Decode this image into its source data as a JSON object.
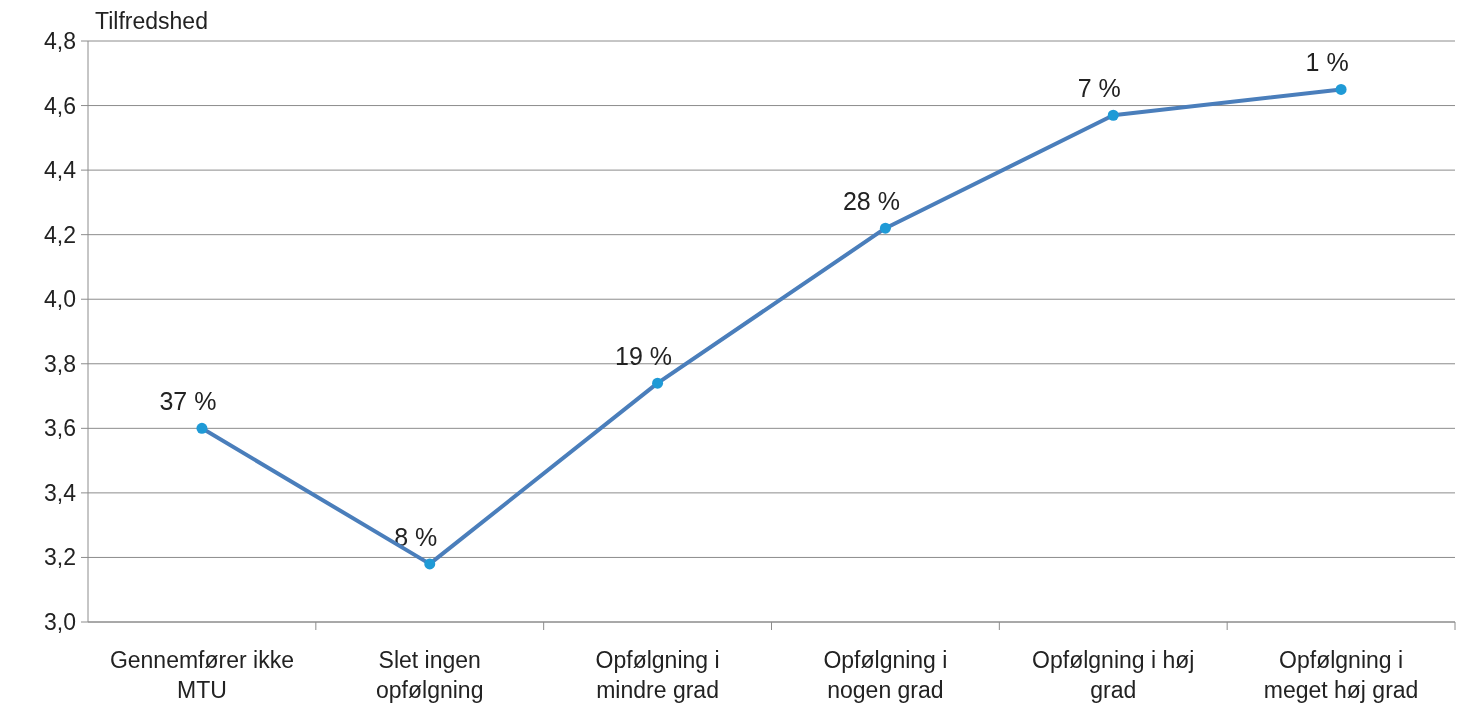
{
  "chart_data": {
    "type": "line",
    "ylabel": "Tilfredshed",
    "categories": [
      "Gennemfører ikke MTU",
      "Slet ingen opfølgning",
      "Opfølgning i mindre grad",
      "Opfølgning i nogen grad",
      "Opfølgning i høj grad",
      "Opfølgning i meget høj grad"
    ],
    "series": [
      {
        "color": "#4a7ebb",
        "values": [
          3.6,
          3.18,
          3.74,
          4.22,
          4.57,
          4.65
        ]
      }
    ],
    "annotations": [
      {
        "text": "37 %",
        "x": "Gennemfører ikke MTU",
        "y": 3.6
      },
      {
        "text": "8 %",
        "x": "Slet ingen opfølgning",
        "y": 3.18
      },
      {
        "text": "19 %",
        "x": "Opfølgning i mindre grad",
        "y": 3.74
      },
      {
        "text": "28 %",
        "x": "Opfølgning i nogen grad",
        "y": 4.22
      },
      {
        "text": "7 %",
        "x": "Opfølgning i høj grad",
        "y": 4.57
      },
      {
        "text": "1 %",
        "x": "Opfølgning i meget høj grad",
        "y": 4.65
      }
    ],
    "marker": "circle",
    "line_style": "solid",
    "ylim": [
      3.0,
      4.8
    ],
    "yticks": [
      {
        "value": 3.0,
        "label": "3,0"
      },
      {
        "value": 3.2,
        "label": "3,2"
      },
      {
        "value": 3.4,
        "label": "3,4"
      },
      {
        "value": 3.6,
        "label": "3,6"
      },
      {
        "value": 3.8,
        "label": "3,8"
      },
      {
        "value": 4.0,
        "label": "4,0"
      },
      {
        "value": 4.2,
        "label": "4,2"
      },
      {
        "value": 4.4,
        "label": "4,4"
      },
      {
        "value": 4.6,
        "label": "4,6"
      },
      {
        "value": 4.8,
        "label": "4,8"
      }
    ],
    "grid": "y"
  }
}
